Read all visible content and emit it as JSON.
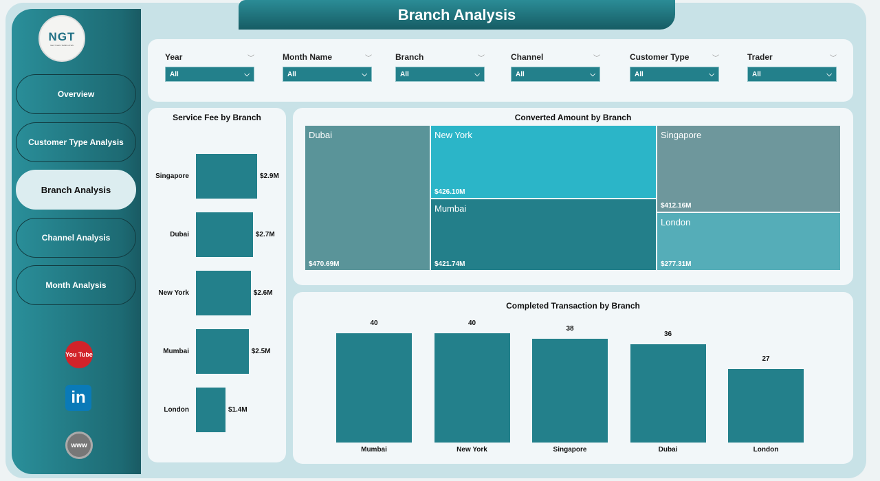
{
  "title": "Branch Analysis",
  "logo": {
    "text": "NGT",
    "subtext": "NEXT GEN TEMPLATES"
  },
  "nav": [
    {
      "label": "Overview"
    },
    {
      "label": "Customer Type Analysis"
    },
    {
      "label": "Branch Analysis",
      "active": true
    },
    {
      "label": "Channel Analysis"
    },
    {
      "label": "Month Analysis"
    }
  ],
  "social": {
    "youtube": "You Tube",
    "linkedin": "in",
    "web": "www"
  },
  "filters": [
    {
      "label": "Year",
      "value": "All"
    },
    {
      "label": "Month Name",
      "value": "All"
    },
    {
      "label": "Branch",
      "value": "All"
    },
    {
      "label": "Channel",
      "value": "All"
    },
    {
      "label": "Customer Type",
      "value": "All"
    },
    {
      "label": "Trader",
      "value": "All"
    }
  ],
  "colors": {
    "bar": "#23808b",
    "dubai": "#5a9499",
    "newyork": "#2bb5c8",
    "singapore": "#6e979c",
    "mumbai": "#237f8a",
    "london": "#55adb8"
  },
  "chart_data": [
    {
      "type": "bar",
      "orientation": "horizontal",
      "title": "Service Fee by Branch",
      "categories": [
        "Singapore",
        "Dubai",
        "New York",
        "Mumbai",
        "London"
      ],
      "values": [
        2.9,
        2.7,
        2.6,
        2.5,
        1.4
      ],
      "labels": [
        "$2.9M",
        "$2.7M",
        "$2.6M",
        "$2.5M",
        "$1.4M"
      ],
      "unit": "$M"
    },
    {
      "type": "treemap",
      "title": "Converted Amount by Branch",
      "categories": [
        "Dubai",
        "New York",
        "Mumbai",
        "Singapore",
        "London"
      ],
      "values": [
        470.69,
        426.1,
        421.74,
        412.16,
        277.31
      ],
      "labels": [
        "$470.69M",
        "$426.10M",
        "$421.74M",
        "$412.16M",
        "$277.31M"
      ],
      "unit": "$M"
    },
    {
      "type": "bar",
      "title": "Completed Transaction by Branch",
      "categories": [
        "Mumbai",
        "New York",
        "Singapore",
        "Dubai",
        "London"
      ],
      "values": [
        40,
        40,
        38,
        36,
        27
      ],
      "labels": [
        "40",
        "40",
        "38",
        "36",
        "27"
      ]
    }
  ]
}
